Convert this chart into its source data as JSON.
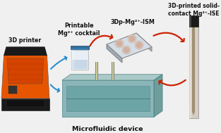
{
  "bg_color": "#f0f0f0",
  "title_bottom": "Microfluidic device",
  "label_printer": "3D printer",
  "label_cocktail": "Printable\nMg²⁺ cocktail",
  "label_ism": "3Dp-Mg²⁺-ISM",
  "label_ise": "3D-printed solid-\ncontact Mg²⁺-ISE",
  "arrow_color": "#cc2200",
  "connector_color": "#2288cc",
  "fig_width": 3.13,
  "fig_height": 1.89,
  "dpi": 100
}
